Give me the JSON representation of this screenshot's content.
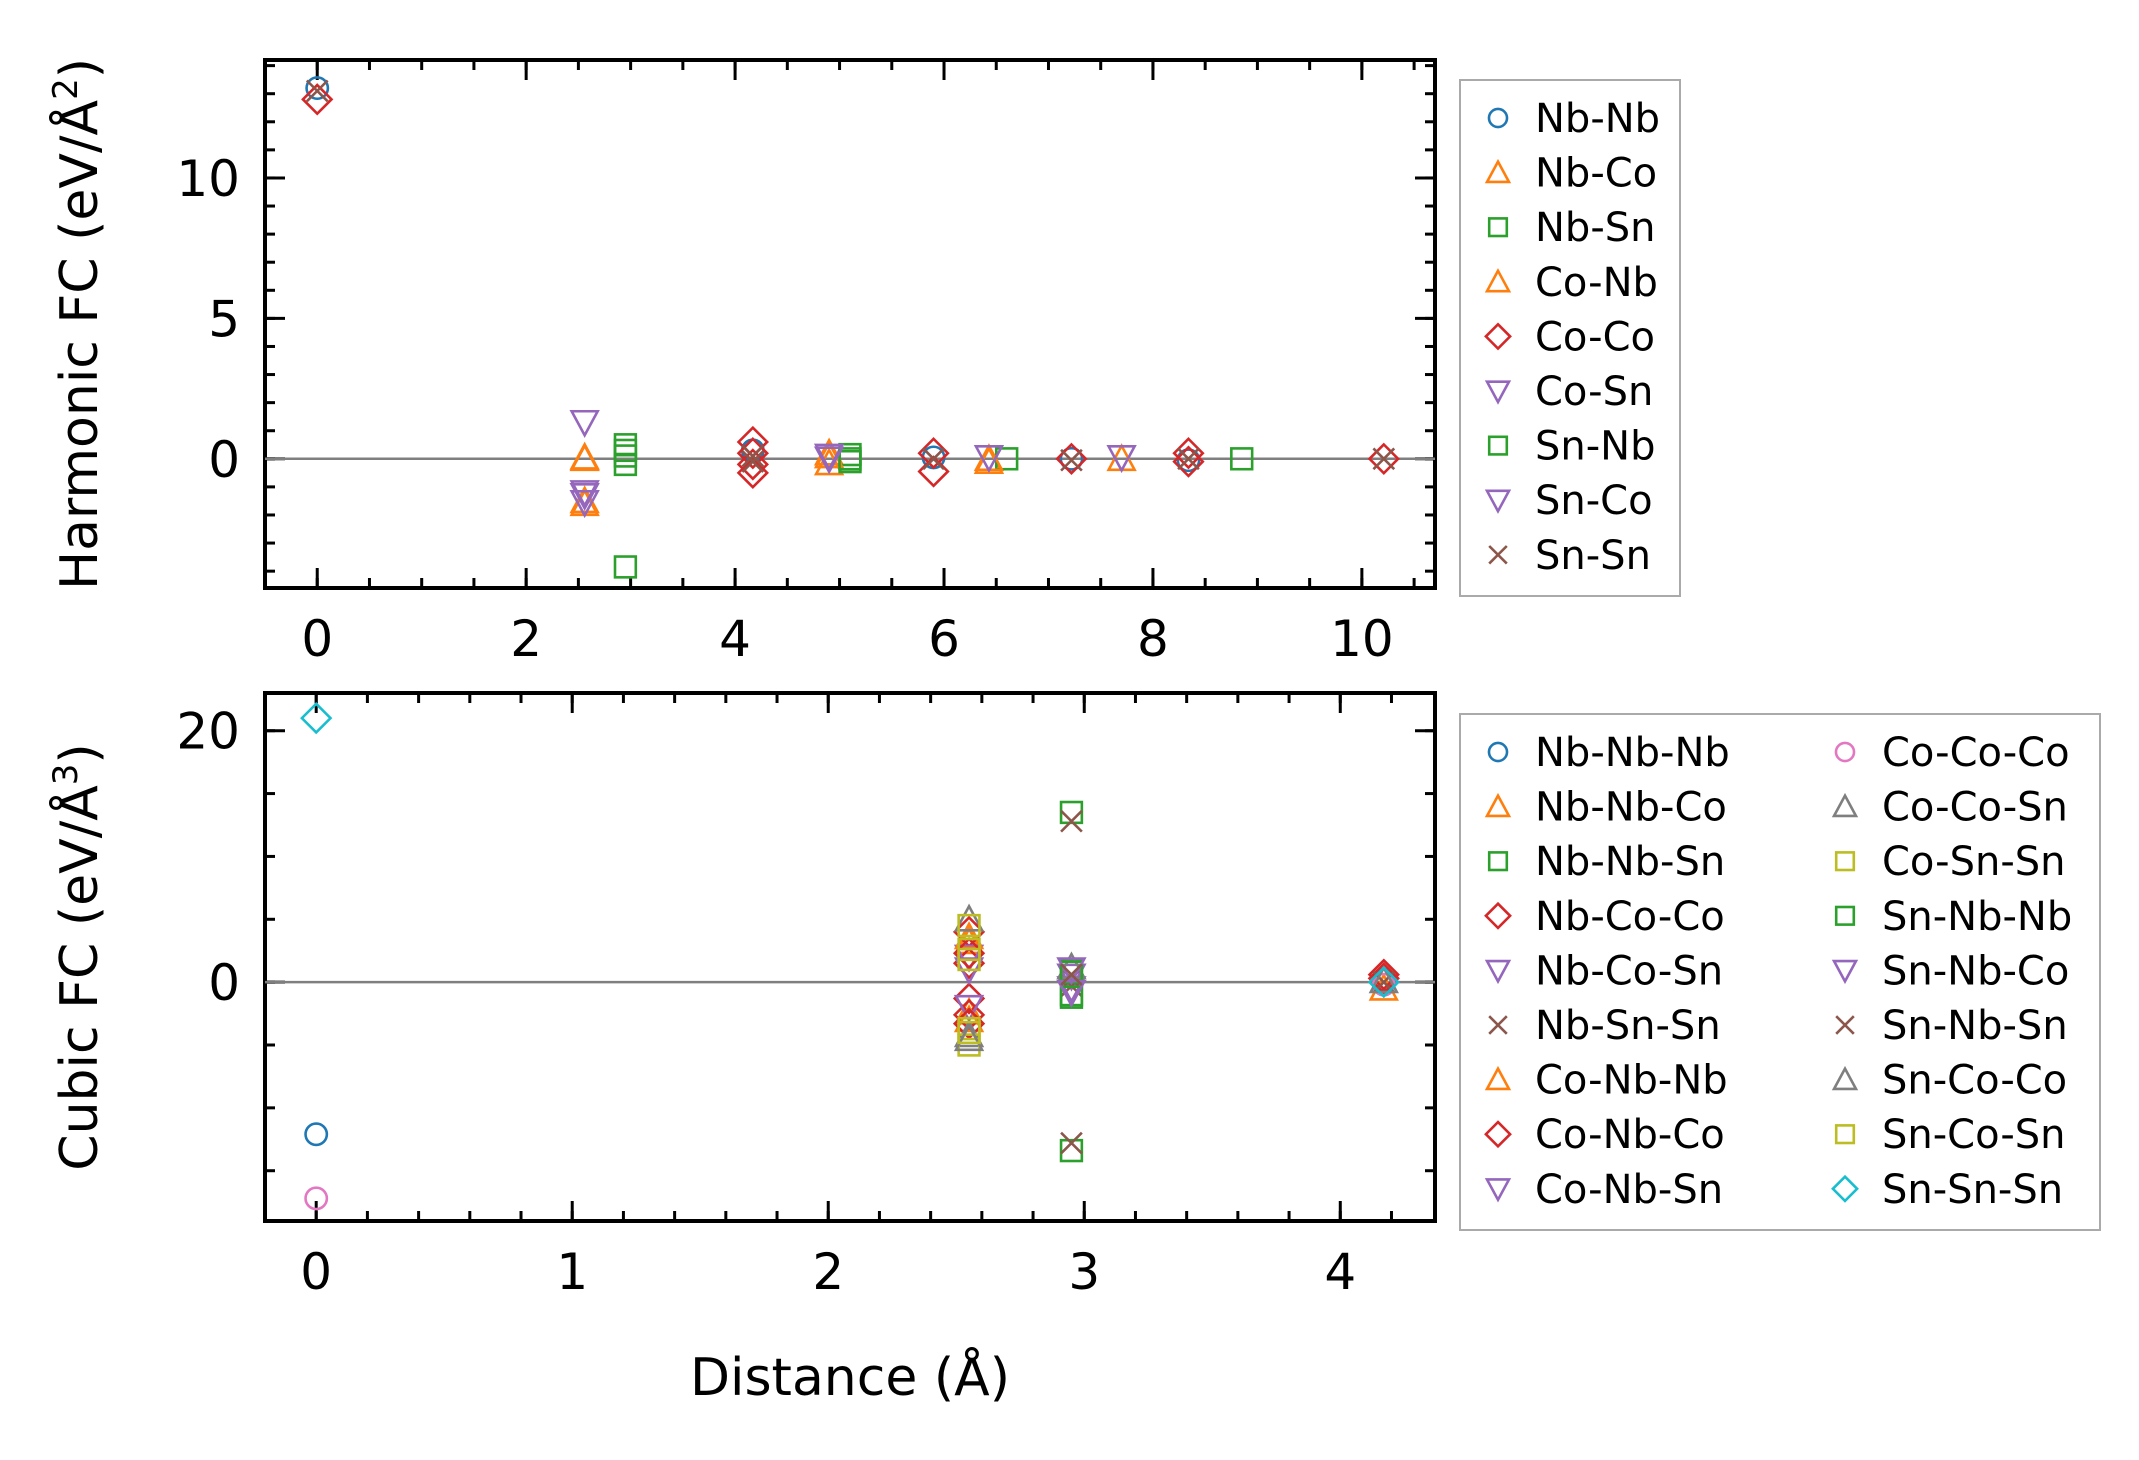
{
  "figure": {
    "xlabel": "Distance (Å)"
  },
  "colors": {
    "blue": "#1f77b4",
    "orange": "#ff7f0e",
    "green": "#2ca02c",
    "red": "#d62728",
    "purple": "#9467bd",
    "brown": "#8c564b",
    "pink": "#e377c2",
    "gray": "#7f7f7f",
    "olive": "#bcbd22",
    "cyan": "#17becf"
  },
  "chart_data": [
    {
      "type": "scatter",
      "id": "harmonic",
      "title": "",
      "ylabel_main": "Harmonic FC (eV/Å",
      "ylabel_sup": "2",
      "ylabel_close": ")",
      "xlabel": "",
      "xlim": [
        -0.5,
        10.7
      ],
      "ylim": [
        -4.6,
        14.2
      ],
      "xticks": [
        0,
        2,
        4,
        6,
        8,
        10
      ],
      "xtick_labels": [
        "0",
        "2",
        "4",
        "6",
        "8",
        "10"
      ],
      "yticks": [
        0,
        5,
        10
      ],
      "ytick_labels": [
        "0",
        "5",
        "10"
      ],
      "zero_line": true,
      "legend_position": "outside-right",
      "legend_columns": 1,
      "series": [
        {
          "name": "Nb-Nb",
          "marker": "circle",
          "color": "#1f77b4",
          "points": [
            [
              0,
              13.2
            ],
            [
              4.17,
              0.3
            ],
            [
              5.9,
              0.05
            ],
            [
              7.22,
              0.0
            ],
            [
              8.34,
              -0.05
            ]
          ]
        },
        {
          "name": "Nb-Co",
          "marker": "triangle-up",
          "color": "#ff7f0e",
          "points": [
            [
              2.56,
              0.05
            ],
            [
              2.56,
              -1.5
            ],
            [
              4.9,
              0.2
            ],
            [
              4.9,
              -0.15
            ],
            [
              6.43,
              -0.1
            ],
            [
              7.7,
              0.0
            ]
          ]
        },
        {
          "name": "Nb-Sn",
          "marker": "square",
          "color": "#2ca02c",
          "points": [
            [
              2.95,
              0.5
            ],
            [
              2.95,
              0.1
            ],
            [
              2.95,
              -0.2
            ],
            [
              2.95,
              -3.85
            ],
            [
              5.1,
              0.15
            ],
            [
              5.1,
              -0.1
            ],
            [
              6.6,
              0.0
            ],
            [
              8.85,
              0.0
            ]
          ]
        },
        {
          "name": "Co-Nb",
          "marker": "triangle-up",
          "color": "#ff7f0e",
          "points": [
            [
              2.56,
              0.0
            ],
            [
              2.56,
              -1.6
            ],
            [
              4.9,
              0.1
            ],
            [
              6.43,
              0.0
            ]
          ]
        },
        {
          "name": "Co-Co",
          "marker": "diamond",
          "color": "#d62728",
          "points": [
            [
              0,
              12.8
            ],
            [
              4.17,
              0.6
            ],
            [
              4.17,
              0.2
            ],
            [
              4.17,
              -0.2
            ],
            [
              4.17,
              -0.5
            ],
            [
              5.9,
              0.2
            ],
            [
              5.9,
              -0.45
            ],
            [
              7.22,
              0.0
            ],
            [
              8.34,
              0.2
            ],
            [
              8.34,
              -0.1
            ],
            [
              10.21,
              0.0
            ]
          ]
        },
        {
          "name": "Co-Sn",
          "marker": "triangle-down",
          "color": "#9467bd",
          "points": [
            [
              2.56,
              1.3
            ],
            [
              2.56,
              -1.2
            ],
            [
              2.56,
              -1.55
            ],
            [
              4.9,
              0.1
            ],
            [
              6.43,
              0.05
            ],
            [
              7.7,
              0.05
            ]
          ]
        },
        {
          "name": "Sn-Nb",
          "marker": "square",
          "color": "#2ca02c",
          "points": [
            [
              2.95,
              0.3
            ],
            [
              5.1,
              0.0
            ]
          ]
        },
        {
          "name": "Sn-Co",
          "marker": "triangle-down",
          "color": "#9467bd",
          "points": [
            [
              2.56,
              -1.3
            ],
            [
              4.9,
              0.0
            ]
          ]
        },
        {
          "name": "Sn-Sn",
          "marker": "x",
          "color": "#8c564b",
          "points": [
            [
              0,
              13.1
            ],
            [
              4.17,
              0.1
            ],
            [
              4.17,
              -0.1
            ],
            [
              5.9,
              0.0
            ],
            [
              7.22,
              -0.05
            ],
            [
              8.34,
              0.0
            ],
            [
              10.21,
              0.0
            ]
          ]
        }
      ]
    },
    {
      "type": "scatter",
      "id": "cubic",
      "title": "",
      "ylabel_main": "Cubic FC (eV/Å",
      "ylabel_sup": "3",
      "ylabel_close": ")",
      "xlabel": "Distance (Å)",
      "xlim": [
        -0.2,
        4.37
      ],
      "ylim": [
        -19,
        23
      ],
      "xticks": [
        0,
        1,
        2,
        3,
        4
      ],
      "xtick_labels": [
        "0",
        "1",
        "2",
        "3",
        "4"
      ],
      "yticks": [
        0,
        20
      ],
      "ytick_labels": [
        "0",
        "20"
      ],
      "zero_line": true,
      "legend_position": "outside-right",
      "legend_columns": 2,
      "series": [
        {
          "name": "Nb-Nb-Nb",
          "marker": "circle",
          "color": "#1f77b4",
          "points": [
            [
              0,
              -12.1
            ],
            [
              4.17,
              0.2
            ]
          ]
        },
        {
          "name": "Nb-Nb-Co",
          "marker": "triangle-up",
          "color": "#ff7f0e",
          "points": [
            [
              2.55,
              3.2
            ],
            [
              2.55,
              -2.4
            ],
            [
              4.17,
              -0.5
            ]
          ]
        },
        {
          "name": "Nb-Nb-Sn",
          "marker": "square",
          "color": "#2ca02c",
          "points": [
            [
              2.95,
              13.5
            ],
            [
              2.95,
              -13.4
            ],
            [
              2.95,
              1.0
            ],
            [
              2.95,
              -1.0
            ]
          ]
        },
        {
          "name": "Nb-Co-Co",
          "marker": "diamond",
          "color": "#d62728",
          "points": [
            [
              2.55,
              4.0
            ],
            [
              2.55,
              1.5
            ],
            [
              2.55,
              -1.3
            ],
            [
              2.55,
              -2.6
            ],
            [
              4.17,
              0.6
            ]
          ]
        },
        {
          "name": "Nb-Co-Sn",
          "marker": "triangle-down",
          "color": "#9467bd",
          "points": [
            [
              2.55,
              2.0
            ],
            [
              2.55,
              -2.0
            ],
            [
              2.95,
              0.5
            ]
          ]
        },
        {
          "name": "Nb-Sn-Sn",
          "marker": "x",
          "color": "#8c564b",
          "points": [
            [
              2.95,
              12.8
            ],
            [
              2.95,
              -12.8
            ],
            [
              2.95,
              0.3
            ],
            [
              2.95,
              -0.3
            ]
          ]
        },
        {
          "name": "Co-Nb-Nb",
          "marker": "triangle-up",
          "color": "#ff7f0e",
          "points": [
            [
              2.55,
              3.6
            ],
            [
              2.55,
              -3.0
            ]
          ]
        },
        {
          "name": "Co-Nb-Co",
          "marker": "diamond",
          "color": "#d62728",
          "points": [
            [
              2.55,
              2.3
            ],
            [
              2.55,
              -3.3
            ],
            [
              4.17,
              0.3
            ]
          ]
        },
        {
          "name": "Co-Nb-Sn",
          "marker": "triangle-down",
          "color": "#9467bd",
          "points": [
            [
              2.55,
              1.0
            ],
            [
              2.95,
              -0.5
            ]
          ]
        },
        {
          "name": "Co-Co-Co",
          "marker": "circle",
          "color": "#e377c2",
          "points": [
            [
              0,
              -17.2
            ],
            [
              4.17,
              -0.2
            ]
          ]
        },
        {
          "name": "Co-Co-Sn",
          "marker": "triangle-up",
          "color": "#7f7f7f",
          "points": [
            [
              2.55,
              5.0
            ],
            [
              2.55,
              -4.2
            ],
            [
              2.95,
              1.2
            ]
          ]
        },
        {
          "name": "Co-Sn-Sn",
          "marker": "square",
          "color": "#bcbd22",
          "points": [
            [
              2.55,
              4.5
            ],
            [
              2.55,
              2.6
            ],
            [
              2.55,
              -3.7
            ],
            [
              2.55,
              -5.0
            ]
          ]
        },
        {
          "name": "Sn-Nb-Nb",
          "marker": "square",
          "color": "#2ca02c",
          "points": [
            [
              2.95,
              0.8
            ],
            [
              2.95,
              -1.2
            ]
          ]
        },
        {
          "name": "Sn-Nb-Co",
          "marker": "triangle-down",
          "color": "#9467bd",
          "points": [
            [
              2.95,
              1.0
            ],
            [
              2.95,
              -0.8
            ]
          ]
        },
        {
          "name": "Sn-Nb-Sn",
          "marker": "x",
          "color": "#8c564b",
          "points": [
            [
              2.95,
              0.6
            ],
            [
              4.17,
              0.0
            ]
          ]
        },
        {
          "name": "Sn-Co-Co",
          "marker": "triangle-up",
          "color": "#7f7f7f",
          "points": [
            [
              2.55,
              -4.5
            ],
            [
              4.17,
              0.1
            ]
          ]
        },
        {
          "name": "Sn-Co-Sn",
          "marker": "square",
          "color": "#bcbd22",
          "points": [
            [
              2.55,
              1.8
            ],
            [
              2.55,
              -4.0
            ]
          ]
        },
        {
          "name": "Sn-Sn-Sn",
          "marker": "diamond",
          "color": "#17becf",
          "points": [
            [
              0,
              21.0
            ],
            [
              4.17,
              0.0
            ]
          ]
        }
      ]
    }
  ]
}
